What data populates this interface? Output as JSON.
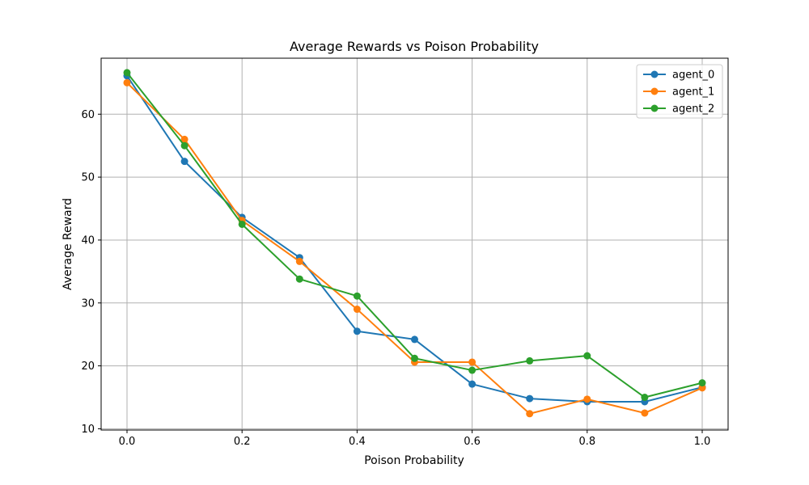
{
  "chart_data": {
    "type": "line",
    "title": "Average Rewards vs Poison Probability",
    "xlabel": "Poison Probability",
    "ylabel": "Average Reward",
    "x": [
      0.0,
      0.1,
      0.2,
      0.3,
      0.4,
      0.5,
      0.6,
      0.7,
      0.8,
      0.9,
      1.0
    ],
    "xlim": [
      -0.045,
      1.045
    ],
    "ylim": [
      9.8,
      68.9
    ],
    "xticks": [
      0.0,
      0.2,
      0.4,
      0.6,
      0.8,
      1.0
    ],
    "xtick_labels": [
      "0.0",
      "0.2",
      "0.4",
      "0.6",
      "0.8",
      "1.0"
    ],
    "yticks": [
      10,
      20,
      30,
      40,
      50,
      60
    ],
    "ytick_labels": [
      "10",
      "20",
      "30",
      "40",
      "50",
      "60"
    ],
    "grid": true,
    "legend_position": "top-right",
    "series": [
      {
        "name": "agent_0",
        "color": "#1f77b4",
        "values": [
          66.1,
          52.5,
          43.6,
          37.2,
          25.5,
          24.2,
          17.1,
          14.8,
          14.3,
          14.3,
          16.6
        ]
      },
      {
        "name": "agent_1",
        "color": "#ff7f0e",
        "values": [
          65.0,
          56.0,
          43.1,
          36.6,
          29.0,
          20.6,
          20.6,
          12.4,
          14.7,
          12.5,
          16.5
        ]
      },
      {
        "name": "agent_2",
        "color": "#2ca02c",
        "values": [
          66.6,
          55.0,
          42.5,
          33.8,
          31.1,
          21.2,
          19.3,
          20.8,
          21.6,
          15.0,
          17.3
        ]
      }
    ]
  }
}
